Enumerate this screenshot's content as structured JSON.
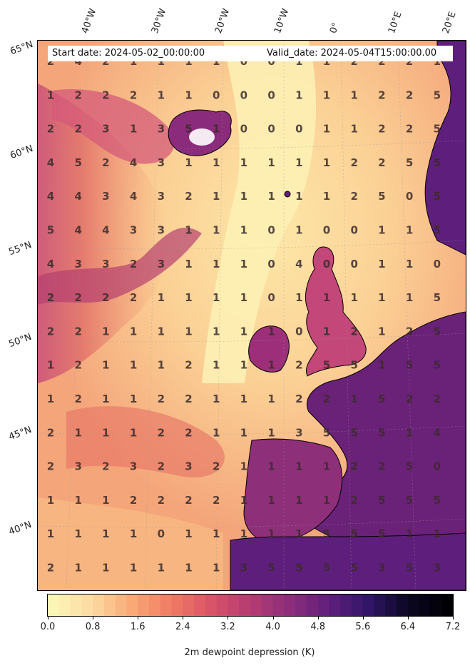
{
  "header": {
    "start_date": "Start date: 2024-05-02_00:00:00",
    "valid_date": "Valid_date: 2024-05-04T15:00:00.00"
  },
  "longitude_labels": [
    "40°W",
    "30°W",
    "20°W",
    "10°W",
    "0°",
    "10°E",
    "20°E"
  ],
  "latitude_labels": [
    "65°N",
    "60°N",
    "55°N",
    "50°N",
    "45°N",
    "40°N"
  ],
  "grid_values": [
    [
      2,
      4,
      2,
      1,
      1,
      1,
      1,
      0,
      0,
      1,
      1,
      2,
      2,
      2,
      1
    ],
    [
      1,
      2,
      2,
      2,
      1,
      1,
      0,
      0,
      0,
      1,
      1,
      1,
      2,
      2,
      5
    ],
    [
      2,
      2,
      3,
      1,
      3,
      5,
      1,
      0,
      0,
      0,
      1,
      1,
      2,
      2,
      5
    ],
    [
      4,
      5,
      2,
      4,
      3,
      1,
      1,
      1,
      1,
      1,
      1,
      2,
      2,
      5,
      5
    ],
    [
      4,
      4,
      3,
      4,
      3,
      2,
      1,
      1,
      1,
      1,
      1,
      2,
      5,
      0,
      5
    ],
    [
      5,
      4,
      4,
      3,
      3,
      1,
      1,
      1,
      0,
      1,
      0,
      0,
      1,
      1,
      5
    ],
    [
      4,
      3,
      3,
      2,
      3,
      1,
      1,
      1,
      0,
      4,
      0,
      0,
      1,
      1,
      0
    ],
    [
      2,
      2,
      2,
      2,
      1,
      1,
      1,
      1,
      0,
      1,
      1,
      1,
      1,
      1,
      5
    ],
    [
      2,
      2,
      1,
      1,
      1,
      1,
      1,
      1,
      1,
      0,
      1,
      2,
      1,
      2,
      5
    ],
    [
      1,
      2,
      1,
      1,
      1,
      2,
      1,
      1,
      1,
      2,
      5,
      5,
      1,
      5,
      5
    ],
    [
      1,
      2,
      1,
      1,
      2,
      2,
      1,
      1,
      1,
      2,
      2,
      1,
      5,
      2,
      2
    ],
    [
      2,
      1,
      1,
      1,
      2,
      2,
      1,
      1,
      1,
      3,
      5,
      5,
      5,
      1,
      4
    ],
    [
      2,
      3,
      2,
      3,
      2,
      3,
      2,
      1,
      1,
      1,
      1,
      2,
      2,
      5,
      0
    ],
    [
      1,
      1,
      1,
      2,
      2,
      2,
      2,
      1,
      1,
      1,
      1,
      2,
      5,
      5,
      5
    ],
    [
      1,
      1,
      1,
      1,
      0,
      1,
      1,
      1,
      1,
      1,
      5,
      5,
      5,
      1,
      1
    ],
    [
      2,
      1,
      1,
      1,
      1,
      1,
      1,
      3,
      5,
      5,
      5,
      5,
      3,
      5,
      3
    ]
  ],
  "colorbar": {
    "label": "2m dewpoint depression (K)",
    "ticks": [
      "0.0",
      "0.8",
      "1.6",
      "2.4",
      "3.2",
      "4.0",
      "4.8",
      "5.6",
      "6.4",
      "7.2"
    ],
    "range": [
      0.0,
      7.2
    ],
    "colormap": "magma_r",
    "colors": [
      "#fcf6b6",
      "#fcd9a1",
      "#f9a876",
      "#f07a63",
      "#d95468",
      "#b53c73",
      "#8c2e7a",
      "#5e1f7c",
      "#311567",
      "#0b0722",
      "#000004"
    ]
  },
  "colors": {
    "land_dry": "#6a2178",
    "ocean_moist": "#fde7a8",
    "ocean_mid": "#f6b07e",
    "coastline": "#000000"
  }
}
